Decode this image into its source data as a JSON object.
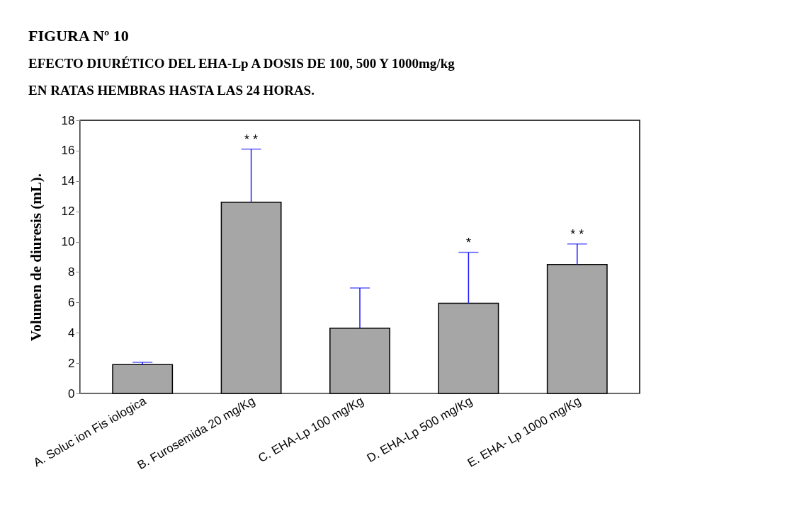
{
  "chart_data": {
    "type": "bar",
    "title": "FIGURA Nº 10",
    "subtitle": "EFECTO  DIURÉTICO  DEL EHA-Lp A DOSIS DE 100, 500 Y 1000mg/kg\nEN RATAS HEMBRAS HASTA LAS 24 HORAS.",
    "ylabel": "Volumen de diuresis (mL).",
    "categories": [
      "A. Soluc ion Fis iologica",
      "B. Furosemida 20 mg/Kg",
      "C. EHA-Lp 100 mg/Kg",
      "D. EHA-Lp 500 mg/Kg",
      "E. EHA- Lp 1000 mg/Kg"
    ],
    "values": [
      1.9,
      12.6,
      4.3,
      5.95,
      8.5
    ],
    "errors": [
      [
        1.9,
        2.05
      ],
      [
        12.6,
        16.1
      ],
      [
        4.3,
        6.95
      ],
      [
        5.95,
        9.3
      ],
      [
        8.5,
        9.85
      ]
    ],
    "color": "#a6a6a6",
    "ylim": [
      0,
      18
    ],
    "yticks": [
      0,
      2,
      4,
      6,
      8,
      10,
      12,
      14,
      16,
      18
    ],
    "grid": false,
    "annotations": [
      {
        "text": "* *",
        "x": "B. Furosemida 20 mg/Kg",
        "y": 16.1
      },
      {
        "text": "*",
        "x": "D. EHA-Lp 500 mg/Kg",
        "y": 9.3
      },
      {
        "text": "* *",
        "x": "E. EHA- Lp 1000 mg/Kg",
        "y": 9.85
      }
    ]
  }
}
